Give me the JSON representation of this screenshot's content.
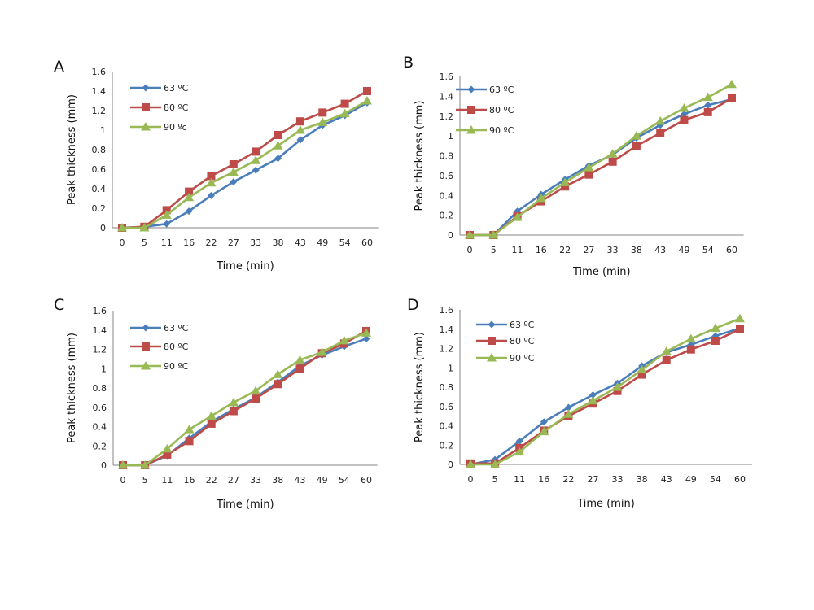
{
  "chart_data": [
    {
      "type": "line",
      "panel_label": "A",
      "xlabel": "Time (min)",
      "ylabel": "Peak thickness (mm)",
      "categories": [
        "0",
        "5",
        "11",
        "16",
        "22",
        "27",
        "33",
        "38",
        "43",
        "49",
        "54",
        "60"
      ],
      "yticks": [
        "0",
        "0.2",
        "0.4",
        "0.6",
        "0.8",
        "1",
        "1.2",
        "1.4",
        "1.6"
      ],
      "ylim": [
        0,
        1.6
      ],
      "grid": false,
      "legend_position": "top-left",
      "series": [
        {
          "name": "63 ºC",
          "color": "#4a7ebb",
          "marker": "diamond",
          "values": [
            0,
            0.01,
            0.04,
            0.17,
            0.33,
            0.47,
            0.59,
            0.71,
            0.9,
            1.05,
            1.15,
            1.28
          ]
        },
        {
          "name": "80 ºC",
          "color": "#be4b48",
          "marker": "square",
          "values": [
            0,
            0.01,
            0.18,
            0.37,
            0.53,
            0.65,
            0.78,
            0.95,
            1.09,
            1.18,
            1.27,
            1.4
          ]
        },
        {
          "name": "90 ºc",
          "color": "#98b954",
          "marker": "triangle",
          "values": [
            0,
            0,
            0.13,
            0.31,
            0.46,
            0.57,
            0.69,
            0.84,
            1.0,
            1.08,
            1.17,
            1.3
          ]
        }
      ]
    },
    {
      "type": "line",
      "panel_label": "B",
      "xlabel": "Time (min)",
      "ylabel": "Peak thickness (mm)",
      "categories": [
        "0",
        "5",
        "11",
        "16",
        "22",
        "27",
        "33",
        "38",
        "43",
        "49",
        "54",
        "60"
      ],
      "yticks": [
        "0",
        "0.2",
        "0.4",
        "0.6",
        "0.8",
        "1",
        "1.2",
        "1.4",
        "1.6"
      ],
      "ylim": [
        0,
        1.6
      ],
      "grid": false,
      "legend_position": "top-left",
      "series": [
        {
          "name": "63 ºC",
          "color": "#4a7ebb",
          "marker": "diamond",
          "values": [
            0,
            0,
            0.24,
            0.41,
            0.56,
            0.7,
            0.81,
            0.98,
            1.11,
            1.22,
            1.31,
            1.37
          ]
        },
        {
          "name": "80 ºC",
          "color": "#be4b48",
          "marker": "square",
          "values": [
            0,
            0,
            0.19,
            0.34,
            0.49,
            0.61,
            0.74,
            0.9,
            1.03,
            1.16,
            1.24,
            1.38
          ]
        },
        {
          "name": "90 ºC",
          "color": "#98b954",
          "marker": "triangle",
          "values": [
            0,
            0,
            0.18,
            0.37,
            0.53,
            0.68,
            0.82,
            1.0,
            1.15,
            1.28,
            1.39,
            1.52
          ]
        }
      ]
    },
    {
      "type": "line",
      "panel_label": "C",
      "xlabel": "Time (min)",
      "ylabel": "Peak thickness (mm)",
      "categories": [
        "0",
        "5",
        "11",
        "16",
        "22",
        "27",
        "33",
        "38",
        "43",
        "49",
        "54",
        "60"
      ],
      "yticks": [
        "0",
        "0.2",
        "0.4",
        "0.6",
        "0.8",
        "1",
        "1.2",
        "1.4",
        "1.6"
      ],
      "ylim": [
        0,
        1.6
      ],
      "grid": false,
      "legend_position": "top-left",
      "series": [
        {
          "name": "63 ºC",
          "color": "#4a7ebb",
          "marker": "diamond",
          "values": [
            0,
            0,
            0.1,
            0.28,
            0.45,
            0.58,
            0.7,
            0.86,
            1.03,
            1.14,
            1.23,
            1.31
          ]
        },
        {
          "name": "80 ºC",
          "color": "#be4b48",
          "marker": "square",
          "values": [
            0,
            0,
            0.11,
            0.25,
            0.43,
            0.56,
            0.69,
            0.84,
            1.0,
            1.16,
            1.26,
            1.39
          ]
        },
        {
          "name": "90  ºC",
          "color": "#98b954",
          "marker": "triangle",
          "values": [
            0,
            0,
            0.17,
            0.37,
            0.51,
            0.65,
            0.77,
            0.94,
            1.09,
            1.17,
            1.29,
            1.37
          ]
        }
      ]
    },
    {
      "type": "line",
      "panel_label": "D",
      "xlabel": "Time (min)",
      "ylabel": "Peak thickness (mm)",
      "categories": [
        "0",
        "5",
        "11",
        "16",
        "22",
        "27",
        "33",
        "38",
        "43",
        "49",
        "54",
        "60"
      ],
      "yticks": [
        "0",
        "0.2",
        "0.4",
        "0.6",
        "0.8",
        "1",
        "1.2",
        "1.4",
        "1.6"
      ],
      "ylim": [
        0,
        1.6
      ],
      "grid": false,
      "legend_position": "top-left",
      "series": [
        {
          "name": "63 ºC",
          "color": "#4a7ebb",
          "marker": "diamond",
          "values": [
            0,
            0.05,
            0.24,
            0.44,
            0.59,
            0.72,
            0.84,
            1.02,
            1.16,
            1.24,
            1.33,
            1.41
          ]
        },
        {
          "name": "80 ºC",
          "color": "#be4b48",
          "marker": "square",
          "values": [
            0.01,
            0.01,
            0.17,
            0.35,
            0.5,
            0.63,
            0.76,
            0.93,
            1.08,
            1.19,
            1.28,
            1.4
          ]
        },
        {
          "name": "90 ºC",
          "color": "#98b954",
          "marker": "triangle",
          "values": [
            0,
            0,
            0.13,
            0.34,
            0.52,
            0.66,
            0.8,
            0.98,
            1.17,
            1.3,
            1.41,
            1.51
          ]
        }
      ]
    }
  ]
}
